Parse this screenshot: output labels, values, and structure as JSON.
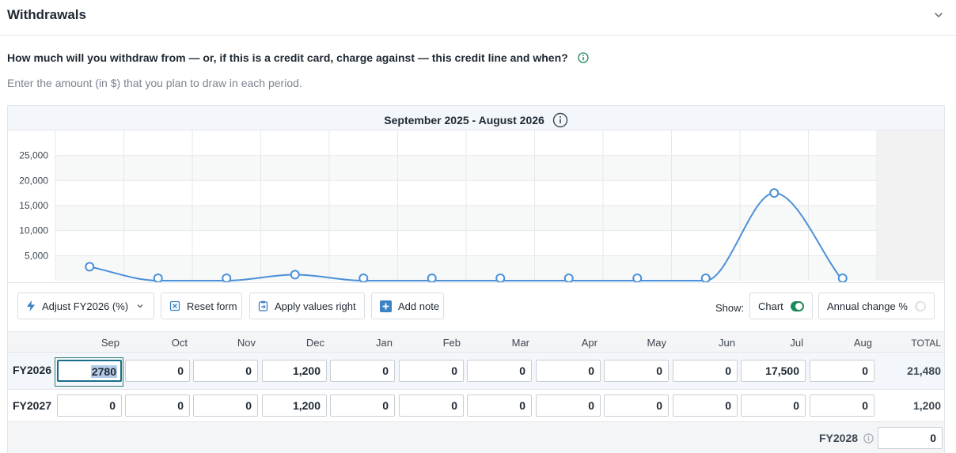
{
  "header": {
    "title": "Withdrawals",
    "collapse_icon": "chevron-down-icon"
  },
  "question": {
    "text": "How much will you withdraw from — or, if this is a credit card, charge against — this credit line and when?",
    "info_icon": "info-icon"
  },
  "subtext": "Enter the amount (in $) that you plan to draw in each period.",
  "panel": {
    "title": "September 2025 - August 2026"
  },
  "chart_data": {
    "type": "line",
    "title": "September 2025 - August 2026",
    "categories": [
      "Sep",
      "Oct",
      "Nov",
      "Dec",
      "Jan",
      "Feb",
      "Mar",
      "Apr",
      "May",
      "Jun",
      "Jul",
      "Aug"
    ],
    "series": [
      {
        "name": "FY2026",
        "values": [
          2780,
          0,
          0,
          1200,
          0,
          0,
          0,
          0,
          0,
          0,
          17500,
          0
        ]
      }
    ],
    "y_ticks": [
      "5,000",
      "10,000",
      "15,000",
      "20,000",
      "25,000"
    ],
    "y_tick_values": [
      5000,
      10000,
      15000,
      20000,
      25000
    ],
    "ylim": [
      0,
      30000
    ],
    "grid": true,
    "line_color": "#4a90d9"
  },
  "toolbar": {
    "adjust_label": "Adjust FY2026 (%)",
    "reset_label": "Reset form",
    "apply_label": "Apply values right",
    "note_label": "Add note",
    "show_label": "Show:",
    "chart_label": "Chart",
    "annual_label": "Annual change %",
    "chart_on": true,
    "annual_on": false
  },
  "table": {
    "months": [
      "Sep",
      "Oct",
      "Nov",
      "Dec",
      "Jan",
      "Feb",
      "Mar",
      "Apr",
      "May",
      "Jun",
      "Jul",
      "Aug"
    ],
    "total_header": "TOTAL",
    "rows": [
      {
        "label": "FY2026",
        "values": [
          "2780",
          "0",
          "0",
          "1,200",
          "0",
          "0",
          "0",
          "0",
          "0",
          "0",
          "17,500",
          "0"
        ],
        "total": "21,480"
      },
      {
        "label": "FY2027",
        "values": [
          "0",
          "0",
          "0",
          "1,200",
          "0",
          "0",
          "0",
          "0",
          "0",
          "0",
          "0",
          "0"
        ],
        "total": "1,200"
      }
    ],
    "fy2028": {
      "label": "FY2028",
      "value": "0"
    }
  },
  "colors": {
    "accent": "#1b8a5a",
    "line": "#4a90d9",
    "icon_blue": "#3b82c4"
  }
}
